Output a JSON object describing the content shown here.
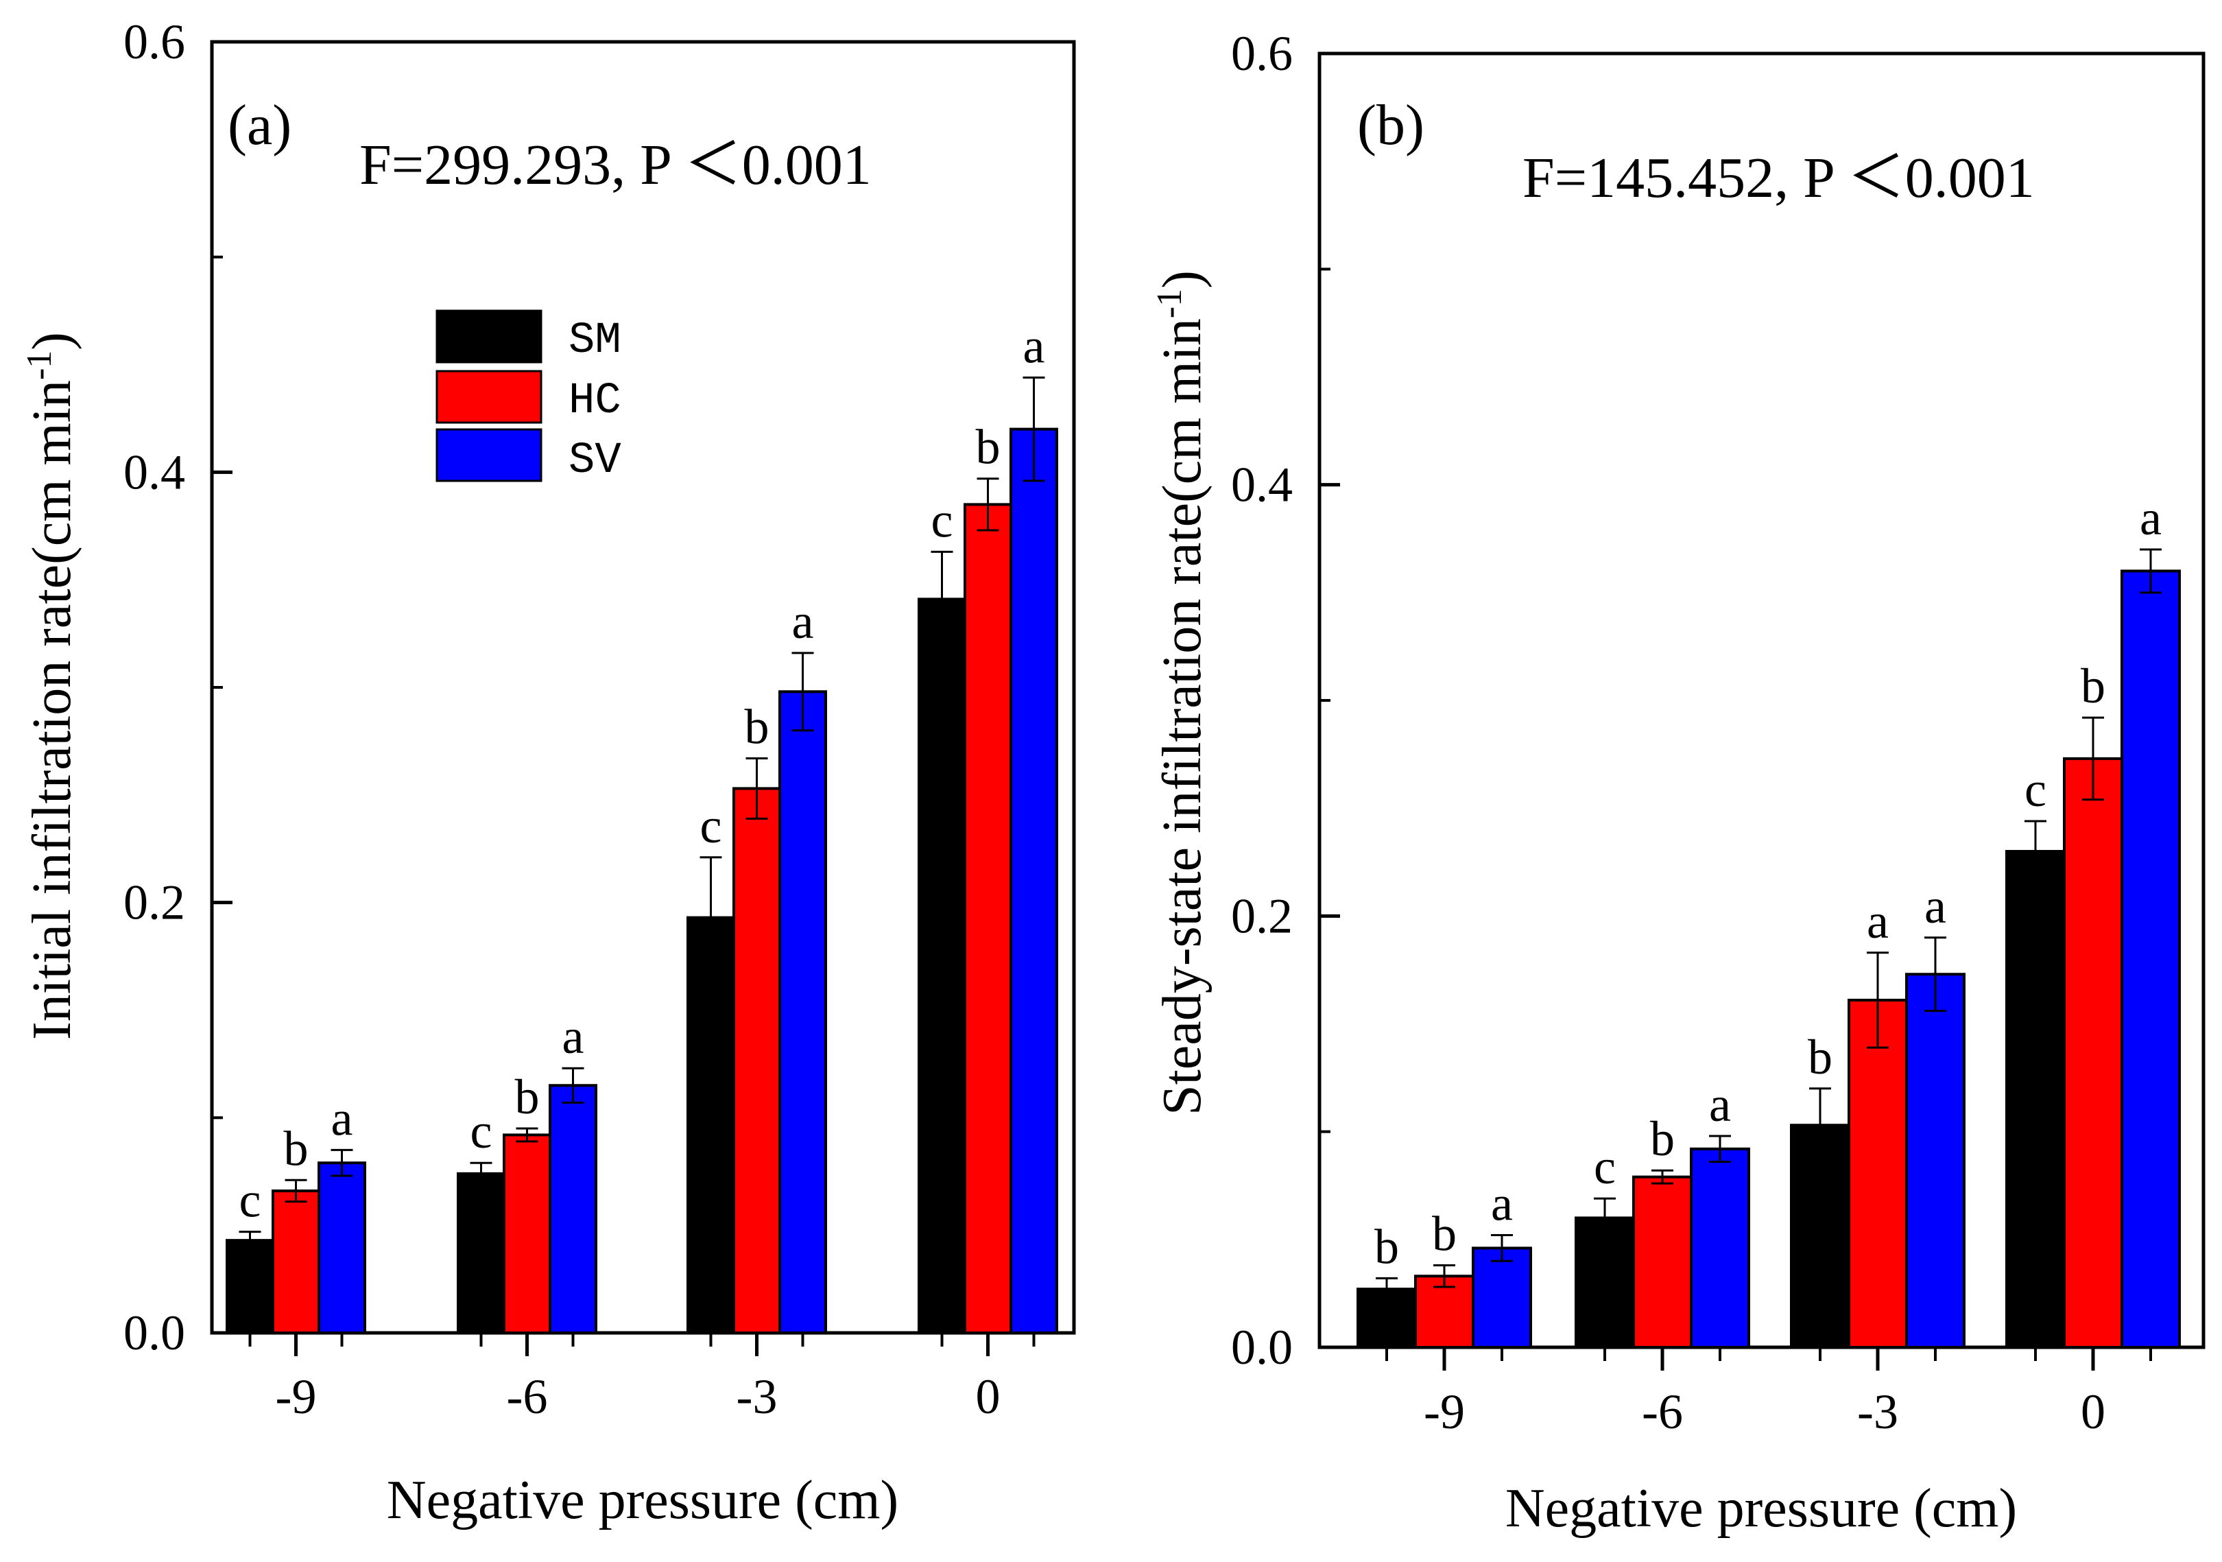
{
  "colors": {
    "SM": "#000000",
    "HC": "#ff0000",
    "SV": "#0000ff",
    "axis": "#000000",
    "background": "#ffffff"
  },
  "chart_data": [
    {
      "type": "bar",
      "panel": "(a)",
      "stat": "F=299.293, P ＜0.001",
      "xlabel": "Negative pressure (cm)",
      "ylabel": "Initial infiltration rate(cm min",
      "ylabel_sup": "-1",
      "ylabel_close": ")",
      "ylim": [
        0,
        0.6
      ],
      "yticks": [
        "0.0",
        "0.2",
        "0.4",
        "0.6"
      ],
      "yticks_values": [
        0,
        0.2,
        0.4,
        0.6
      ],
      "categories": [
        "-9",
        "-6",
        "-3",
        "0"
      ],
      "legend": [
        "SM",
        "HC",
        "SV"
      ],
      "legend_position": "upper-middle",
      "series": [
        {
          "name": "SM",
          "values": [
            0.043,
            0.074,
            0.193,
            0.341
          ],
          "errors": [
            0.004,
            0.005,
            0.028,
            0.022
          ],
          "letters": [
            "c",
            "c",
            "c",
            "c"
          ]
        },
        {
          "name": "HC",
          "values": [
            0.066,
            0.092,
            0.253,
            0.385
          ],
          "errors": [
            0.005,
            0.003,
            0.014,
            0.012
          ],
          "letters": [
            "b",
            "b",
            "b",
            "b"
          ]
        },
        {
          "name": "SV",
          "values": [
            0.079,
            0.115,
            0.298,
            0.42
          ],
          "errors": [
            0.006,
            0.008,
            0.018,
            0.024
          ],
          "letters": [
            "a",
            "a",
            "a",
            "a"
          ]
        }
      ]
    },
    {
      "type": "bar",
      "panel": "(b)",
      "stat": "F=145.452, P ＜0.001",
      "xlabel": "Negative pressure (cm)",
      "ylabel": "Steady-state infiltration rate(cm min",
      "ylabel_sup": "-1",
      "ylabel_close": ")",
      "ylim": [
        0,
        0.6
      ],
      "yticks": [
        "0.0",
        "0.2",
        "0.4",
        "0.6"
      ],
      "yticks_values": [
        0,
        0.2,
        0.4,
        0.6
      ],
      "categories": [
        "-9",
        "-6",
        "-3",
        "0"
      ],
      "legend": [],
      "series": [
        {
          "name": "SM",
          "values": [
            0.027,
            0.06,
            0.103,
            0.23
          ],
          "errors": [
            0.005,
            0.009,
            0.017,
            0.014
          ],
          "letters": [
            "b",
            "c",
            "b",
            "c"
          ]
        },
        {
          "name": "HC",
          "values": [
            0.033,
            0.079,
            0.161,
            0.273
          ],
          "errors": [
            0.005,
            0.003,
            0.022,
            0.019
          ],
          "letters": [
            "b",
            "b",
            "a",
            "b"
          ]
        },
        {
          "name": "SV",
          "values": [
            0.046,
            0.092,
            0.173,
            0.36
          ],
          "errors": [
            0.006,
            0.006,
            0.017,
            0.01
          ],
          "letters": [
            "a",
            "a",
            "a",
            "a"
          ]
        }
      ]
    }
  ]
}
